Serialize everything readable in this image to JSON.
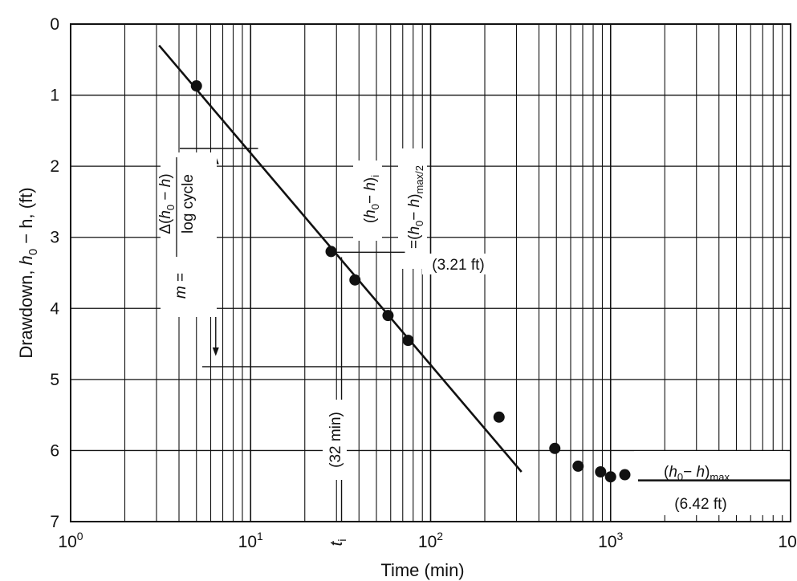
{
  "chart_data": {
    "type": "scatter",
    "x_scale": "log",
    "y_scale": "linear",
    "y_inverted": true,
    "xlim": [
      1,
      10000
    ],
    "ylim": [
      0,
      7
    ],
    "grid": true,
    "xlabel": "Time (min)",
    "ylabel": "Drawdown, h0 − h, (ft)",
    "ylabel_parts": {
      "pre": "Drawdown, ",
      "h": "h",
      "zero": "0",
      "post": " − h, (ft)"
    },
    "x_ticks": [
      {
        "value": 1,
        "base": "10",
        "exp": "0"
      },
      {
        "value": 10,
        "base": "10",
        "exp": "1"
      },
      {
        "value": 100,
        "base": "10",
        "exp": "2"
      },
      {
        "value": 1000,
        "base": "10",
        "exp": "3"
      },
      {
        "value": 10000,
        "base": "10",
        "exp": "4"
      }
    ],
    "y_ticks": [
      0,
      1,
      2,
      3,
      4,
      5,
      6,
      7
    ],
    "series": [
      {
        "points": [
          {
            "x": 5,
            "y": 0.87
          },
          {
            "x": 28,
            "y": 3.2
          },
          {
            "x": 38,
            "y": 3.6
          },
          {
            "x": 58,
            "y": 4.1
          },
          {
            "x": 75,
            "y": 4.45
          },
          {
            "x": 240,
            "y": 5.53
          },
          {
            "x": 490,
            "y": 5.97
          },
          {
            "x": 660,
            "y": 6.22
          },
          {
            "x": 880,
            "y": 6.3
          },
          {
            "x": 1000,
            "y": 6.37
          },
          {
            "x": 1200,
            "y": 6.34
          }
        ]
      }
    ],
    "fit_line": {
      "x": [
        3.1,
        320
      ],
      "y": [
        0.3,
        6.3
      ]
    },
    "annotations": {
      "slope_formula": {
        "m": "m =",
        "numerator": "Δ(h0 − h)",
        "denominator": "log cycle"
      },
      "hi_label": "(h0 − h)i",
      "half_max_label": "=(h0 − h)max/2",
      "half_max_value": "(3.21 ft)",
      "ti_label": "ti",
      "ti_value": "(32 min)",
      "max_label": "(h0 − h)max",
      "max_value": "(6.42 ft)"
    }
  }
}
